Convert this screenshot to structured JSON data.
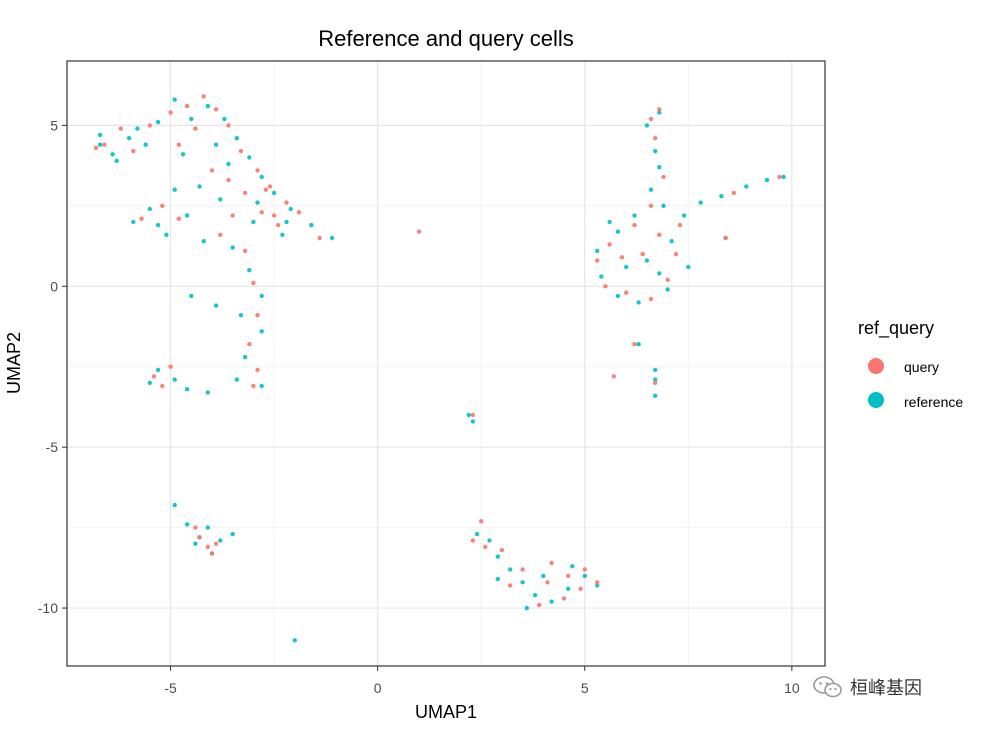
{
  "chart_data": {
    "type": "scatter",
    "title": "Reference and query cells",
    "xlabel": "UMAP1",
    "ylabel": "UMAP2",
    "xlim": [
      -7.5,
      10.8
    ],
    "ylim": [
      -11.8,
      7.0
    ],
    "x_ticks": [
      -5,
      0,
      5,
      10
    ],
    "x_tick_labels": [
      "-5",
      "0",
      "5",
      "10"
    ],
    "y_ticks": [
      5,
      0,
      -5,
      -10
    ],
    "y_tick_labels": [
      "5",
      "0",
      "-5",
      "-10"
    ],
    "grid": true,
    "legend": {
      "title": "ref_query",
      "position": "right",
      "entries": [
        {
          "label": "query",
          "color": "#F8766D"
        },
        {
          "label": "reference",
          "color": "#00BFC4"
        }
      ]
    },
    "series": [
      {
        "name": "query",
        "color": "#F8766D",
        "points": [
          [
            -6.6,
            4.4
          ],
          [
            -6.2,
            4.9
          ],
          [
            -5.9,
            4.2
          ],
          [
            -5.5,
            5.0
          ],
          [
            -5.0,
            5.4
          ],
          [
            -4.6,
            5.6
          ],
          [
            -4.2,
            5.9
          ],
          [
            -3.9,
            5.5
          ],
          [
            -4.4,
            4.9
          ],
          [
            -3.6,
            5.0
          ],
          [
            -3.3,
            4.2
          ],
          [
            -2.9,
            3.6
          ],
          [
            -2.6,
            3.1
          ],
          [
            -2.2,
            2.6
          ],
          [
            -1.9,
            2.3
          ],
          [
            -2.4,
            1.9
          ],
          [
            -2.8,
            2.3
          ],
          [
            -3.2,
            2.9
          ],
          [
            -4.0,
            3.6
          ],
          [
            -3.6,
            3.3
          ],
          [
            -5.2,
            2.5
          ],
          [
            -5.7,
            2.1
          ],
          [
            -4.8,
            2.1
          ],
          [
            -3.8,
            1.6
          ],
          [
            -3.2,
            1.1
          ],
          [
            -3.0,
            0.1
          ],
          [
            -2.9,
            -0.9
          ],
          [
            -3.1,
            -1.8
          ],
          [
            -2.9,
            -2.6
          ],
          [
            -3.0,
            -3.1
          ],
          [
            -5.4,
            -2.8
          ],
          [
            -5.0,
            -2.5
          ],
          [
            -5.2,
            -3.1
          ],
          [
            -1.4,
            1.5
          ],
          [
            1.0,
            1.7
          ],
          [
            -6.8,
            4.3
          ],
          [
            -4.8,
            4.4
          ],
          [
            -2.7,
            3.0
          ],
          [
            -2.5,
            2.2
          ],
          [
            -3.5,
            2.2
          ],
          [
            6.6,
            5.2
          ],
          [
            6.8,
            5.5
          ],
          [
            6.7,
            4.6
          ],
          [
            6.9,
            3.4
          ],
          [
            6.6,
            2.5
          ],
          [
            6.2,
            1.9
          ],
          [
            5.6,
            1.3
          ],
          [
            5.3,
            0.8
          ],
          [
            5.5,
            0.0
          ],
          [
            6.0,
            -0.2
          ],
          [
            6.6,
            -0.4
          ],
          [
            7.0,
            0.2
          ],
          [
            7.2,
            1.0
          ],
          [
            6.8,
            1.6
          ],
          [
            7.3,
            1.9
          ],
          [
            5.9,
            0.9
          ],
          [
            6.4,
            1.0
          ],
          [
            8.6,
            2.9
          ],
          [
            9.7,
            3.4
          ],
          [
            8.4,
            1.5
          ],
          [
            6.7,
            -3.0
          ],
          [
            5.7,
            -2.8
          ],
          [
            6.2,
            -1.8
          ],
          [
            2.3,
            -4.0
          ],
          [
            -4.3,
            -7.8
          ],
          [
            -4.1,
            -8.1
          ],
          [
            -3.9,
            -8.0
          ],
          [
            -4.4,
            -7.5
          ],
          [
            -4.0,
            -8.3
          ],
          [
            2.3,
            -7.9
          ],
          [
            2.6,
            -8.1
          ],
          [
            3.0,
            -8.2
          ],
          [
            3.5,
            -8.8
          ],
          [
            4.2,
            -8.6
          ],
          [
            4.6,
            -9.0
          ],
          [
            4.9,
            -9.4
          ],
          [
            5.3,
            -9.2
          ],
          [
            4.5,
            -9.7
          ],
          [
            3.9,
            -9.9
          ],
          [
            4.1,
            -9.2
          ],
          [
            3.2,
            -9.3
          ],
          [
            2.5,
            -7.3
          ],
          [
            5.0,
            -8.8
          ]
        ]
      },
      {
        "name": "reference",
        "color": "#00BFC4",
        "points": [
          [
            -6.7,
            4.7
          ],
          [
            -6.4,
            4.1
          ],
          [
            -6.0,
            4.6
          ],
          [
            -5.6,
            4.4
          ],
          [
            -5.3,
            5.1
          ],
          [
            -4.9,
            5.8
          ],
          [
            -4.5,
            5.2
          ],
          [
            -4.1,
            5.6
          ],
          [
            -3.7,
            5.2
          ],
          [
            -3.4,
            4.6
          ],
          [
            -3.1,
            4.0
          ],
          [
            -2.8,
            3.4
          ],
          [
            -2.5,
            2.9
          ],
          [
            -2.1,
            2.4
          ],
          [
            -1.6,
            1.9
          ],
          [
            -1.1,
            1.5
          ],
          [
            -2.3,
            1.6
          ],
          [
            -3.0,
            2.0
          ],
          [
            -3.8,
            2.7
          ],
          [
            -4.3,
            3.1
          ],
          [
            -4.9,
            3.0
          ],
          [
            -5.5,
            2.4
          ],
          [
            -5.9,
            2.0
          ],
          [
            -5.1,
            1.6
          ],
          [
            -4.2,
            1.4
          ],
          [
            -3.5,
            1.2
          ],
          [
            -3.1,
            0.5
          ],
          [
            -2.8,
            -0.3
          ],
          [
            -3.3,
            -0.9
          ],
          [
            -2.8,
            -1.4
          ],
          [
            -3.2,
            -2.2
          ],
          [
            -2.8,
            -3.1
          ],
          [
            -3.4,
            -2.9
          ],
          [
            -4.1,
            -3.3
          ],
          [
            -4.6,
            -3.2
          ],
          [
            -5.3,
            -2.6
          ],
          [
            -5.5,
            -3.0
          ],
          [
            -4.9,
            -2.9
          ],
          [
            -3.9,
            -0.6
          ],
          [
            -4.5,
            -0.3
          ],
          [
            -5.8,
            4.9
          ],
          [
            -4.7,
            4.1
          ],
          [
            -3.9,
            4.4
          ],
          [
            -6.3,
            3.9
          ],
          [
            -6.7,
            4.4
          ],
          [
            -2.2,
            2.0
          ],
          [
            -2.9,
            2.6
          ],
          [
            -3.6,
            3.8
          ],
          [
            -4.6,
            2.2
          ],
          [
            -5.3,
            1.9
          ],
          [
            6.8,
            5.4
          ],
          [
            6.5,
            5.0
          ],
          [
            6.7,
            4.2
          ],
          [
            6.8,
            3.7
          ],
          [
            6.6,
            3.0
          ],
          [
            6.9,
            2.5
          ],
          [
            7.4,
            2.2
          ],
          [
            7.1,
            1.4
          ],
          [
            6.8,
            0.4
          ],
          [
            6.3,
            -0.5
          ],
          [
            5.8,
            -0.3
          ],
          [
            5.4,
            0.3
          ],
          [
            5.3,
            1.1
          ],
          [
            5.8,
            1.7
          ],
          [
            6.2,
            2.2
          ],
          [
            6.0,
            0.6
          ],
          [
            6.5,
            0.8
          ],
          [
            7.0,
            -0.1
          ],
          [
            5.6,
            2.0
          ],
          [
            7.5,
            0.6
          ],
          [
            7.8,
            2.6
          ],
          [
            8.3,
            2.8
          ],
          [
            8.9,
            3.1
          ],
          [
            9.4,
            3.3
          ],
          [
            9.8,
            3.4
          ],
          [
            8.4,
            1.5
          ],
          [
            6.7,
            -2.6
          ],
          [
            6.7,
            -3.4
          ],
          [
            6.7,
            -2.9
          ],
          [
            6.3,
            -1.8
          ],
          [
            2.2,
            -4.0
          ],
          [
            2.3,
            -4.2
          ],
          [
            -4.9,
            -6.8
          ],
          [
            -4.6,
            -7.4
          ],
          [
            -4.3,
            -7.8
          ],
          [
            -4.0,
            -8.3
          ],
          [
            -3.8,
            -7.9
          ],
          [
            -3.5,
            -7.7
          ],
          [
            -4.1,
            -7.5
          ],
          [
            -4.4,
            -8.0
          ],
          [
            2.4,
            -7.7
          ],
          [
            2.7,
            -7.9
          ],
          [
            2.9,
            -8.4
          ],
          [
            3.2,
            -8.8
          ],
          [
            3.5,
            -9.2
          ],
          [
            3.8,
            -9.6
          ],
          [
            4.2,
            -9.8
          ],
          [
            4.6,
            -9.4
          ],
          [
            5.0,
            -9.0
          ],
          [
            5.3,
            -9.3
          ],
          [
            4.7,
            -8.7
          ],
          [
            4.0,
            -9.0
          ],
          [
            3.6,
            -10.0
          ],
          [
            2.9,
            -9.1
          ],
          [
            -2.0,
            -11.0
          ]
        ]
      }
    ]
  },
  "watermark": {
    "icon": "wechat-icon",
    "text": "桓峰基因"
  }
}
